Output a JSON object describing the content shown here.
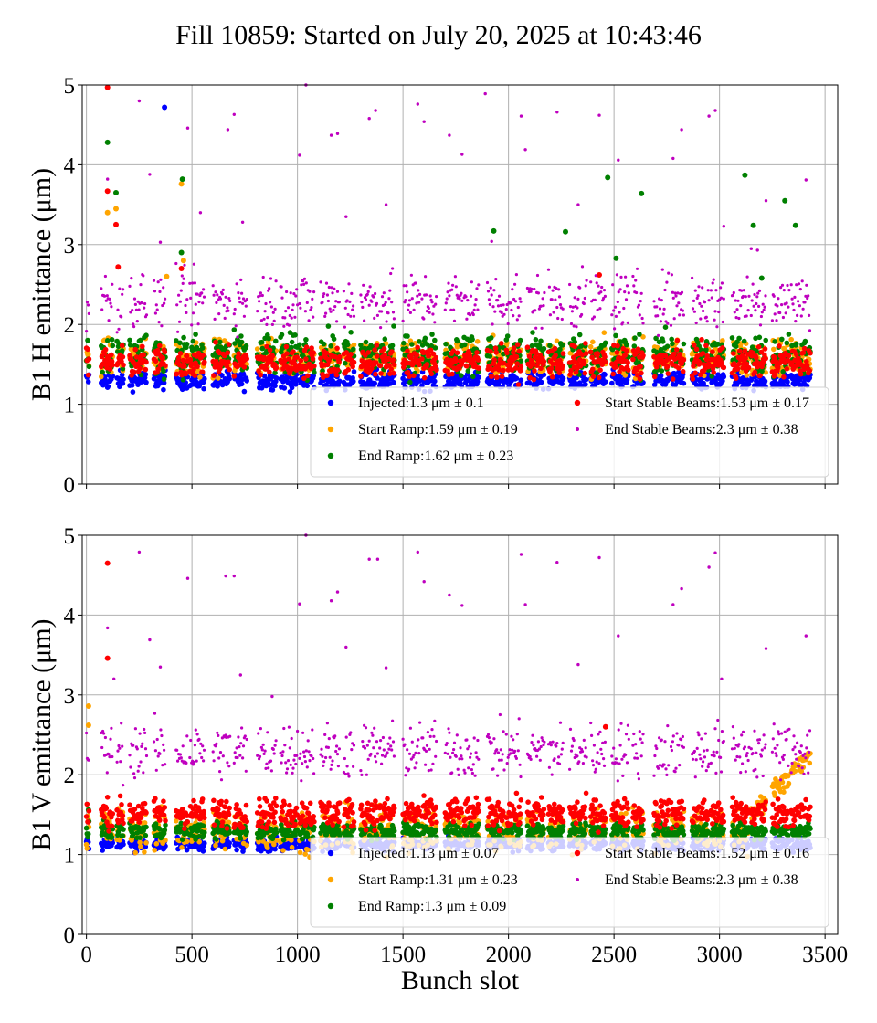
{
  "title": "Fill 10859: Started on July 20, 2025 at 10:43:46",
  "colors": {
    "injected": "#0000ff",
    "start_ramp": "#ffa500",
    "end_ramp": "#008000",
    "start_stable": "#ff0000",
    "end_stable": "#bf00bf"
  },
  "chart_data": [
    {
      "type": "scatter",
      "id": "h",
      "xlabel": "",
      "ylabel": "B1 H emittance (μm)",
      "xlim": [
        -20,
        3560
      ],
      "ylim": [
        0,
        5
      ],
      "yticks": [
        "0",
        "1",
        "2",
        "3",
        "4",
        "5"
      ],
      "xticks": [],
      "grid": true,
      "legend_position": "lower-right",
      "series": [
        {
          "name": "Injected:1.3 μm ± 0.1",
          "key": "injected",
          "mean": 1.3,
          "std": 0.1,
          "outliers": [
            [
              370,
              4.72
            ]
          ]
        },
        {
          "name": "Start Ramp:1.59 μm ± 0.19",
          "key": "start_ramp",
          "mean": 1.59,
          "std": 0.19,
          "outliers": [
            [
              100,
              3.4
            ],
            [
              140,
              3.45
            ],
            [
              450,
              3.76
            ],
            [
              460,
              2.8
            ],
            [
              380,
              2.6
            ]
          ]
        },
        {
          "name": "End Ramp:1.62 μm ± 0.23",
          "key": "end_ramp",
          "mean": 1.62,
          "std": 0.23,
          "outliers": [
            [
              100,
              4.28
            ],
            [
              140,
              3.65
            ],
            [
              455,
              3.82
            ],
            [
              450,
              2.9
            ],
            [
              1930,
              3.17
            ],
            [
              2270,
              3.16
            ],
            [
              2470,
              3.84
            ],
            [
              2510,
              2.83
            ],
            [
              2630,
              3.64
            ],
            [
              3120,
              3.87
            ],
            [
              3160,
              3.24
            ],
            [
              3310,
              3.55
            ],
            [
              3360,
              3.24
            ],
            [
              3200,
              2.58
            ]
          ]
        },
        {
          "name": "Start Stable Beams:1.53 μm ± 0.17",
          "key": "start_stable",
          "mean": 1.53,
          "std": 0.17,
          "outliers": [
            [
              100,
              4.97
            ],
            [
              100,
              3.67
            ],
            [
              140,
              3.25
            ],
            [
              150,
              2.72
            ],
            [
              450,
              2.7
            ],
            [
              2430,
              2.62
            ]
          ]
        },
        {
          "name": "End Stable Beams:2.3 μm ± 0.38",
          "key": "end_stable",
          "mean": 2.3,
          "std": 0.38,
          "outliers": [
            [
              100,
              3.82
            ],
            [
              250,
              4.8
            ],
            [
              300,
              3.88
            ],
            [
              350,
              3.03
            ],
            [
              480,
              4.46
            ],
            [
              540,
              3.4
            ],
            [
              670,
              4.44
            ],
            [
              700,
              4.63
            ],
            [
              740,
              3.28
            ],
            [
              1010,
              4.12
            ],
            [
              1040,
              5.0
            ],
            [
              1160,
              4.37
            ],
            [
              1190,
              4.39
            ],
            [
              1230,
              3.35
            ],
            [
              1340,
              4.58
            ],
            [
              1370,
              4.68
            ],
            [
              1420,
              3.5
            ],
            [
              1570,
              4.76
            ],
            [
              1600,
              4.54
            ],
            [
              1720,
              4.37
            ],
            [
              1780,
              4.13
            ],
            [
              1890,
              4.89
            ],
            [
              1920,
              3.04
            ],
            [
              2060,
              4.61
            ],
            [
              2080,
              4.19
            ],
            [
              2230,
              4.66
            ],
            [
              2330,
              3.5
            ],
            [
              2430,
              4.62
            ],
            [
              2520,
              4.06
            ],
            [
              2780,
              4.08
            ],
            [
              2820,
              4.44
            ],
            [
              2950,
              4.61
            ],
            [
              2980,
              4.68
            ],
            [
              3020,
              3.23
            ],
            [
              3220,
              3.55
            ],
            [
              3410,
              3.81
            ],
            [
              3150,
              2.95
            ],
            [
              3180,
              2.93
            ]
          ]
        }
      ]
    },
    {
      "type": "scatter",
      "id": "v",
      "xlabel": "Bunch slot",
      "ylabel": "B1 V emittance (μm)",
      "xlim": [
        -20,
        3560
      ],
      "ylim": [
        0,
        5
      ],
      "yticks": [
        "0",
        "1",
        "2",
        "3",
        "4",
        "5"
      ],
      "xticks": [
        "0",
        "500",
        "1000",
        "1500",
        "2000",
        "2500",
        "3000",
        "3500"
      ],
      "grid": true,
      "legend_position": "lower-right",
      "series": [
        {
          "name": "Injected:1.13 μm ± 0.07",
          "key": "injected",
          "mean": 1.13,
          "std": 0.07,
          "outliers": []
        },
        {
          "name": "Start Ramp:1.31 μm ± 0.23",
          "key": "start_ramp",
          "mean": 1.31,
          "std": 0.23,
          "outliers": [
            [
              10,
              2.86
            ],
            [
              10,
              2.62
            ]
          ]
        },
        {
          "name": "End Ramp:1.3 μm ± 0.09",
          "key": "end_ramp",
          "mean": 1.3,
          "std": 0.09,
          "outliers": [
            [
              10,
              1.56
            ]
          ]
        },
        {
          "name": "Start Stable Beams:1.52 μm ± 0.16",
          "key": "start_stable",
          "mean": 1.52,
          "std": 0.16,
          "outliers": [
            [
              100,
              4.65
            ],
            [
              100,
              3.46
            ],
            [
              2460,
              2.6
            ]
          ]
        },
        {
          "name": "End Stable Beams:2.3 μm ± 0.38",
          "key": "end_stable",
          "mean": 2.3,
          "std": 0.38,
          "outliers": [
            [
              100,
              3.84
            ],
            [
              130,
              3.2
            ],
            [
              250,
              4.79
            ],
            [
              300,
              3.69
            ],
            [
              350,
              3.35
            ],
            [
              480,
              4.46
            ],
            [
              660,
              4.49
            ],
            [
              700,
              4.49
            ],
            [
              730,
              3.25
            ],
            [
              880,
              2.98
            ],
            [
              1010,
              4.14
            ],
            [
              1040,
              5.0
            ],
            [
              1160,
              4.18
            ],
            [
              1190,
              4.29
            ],
            [
              1230,
              3.6
            ],
            [
              1340,
              4.7
            ],
            [
              1380,
              4.7
            ],
            [
              1420,
              3.34
            ],
            [
              1570,
              4.79
            ],
            [
              1600,
              4.42
            ],
            [
              1720,
              4.25
            ],
            [
              1780,
              4.12
            ],
            [
              2060,
              4.76
            ],
            [
              2080,
              4.13
            ],
            [
              2230,
              4.66
            ],
            [
              2330,
              3.38
            ],
            [
              2430,
              4.72
            ],
            [
              2520,
              3.74
            ],
            [
              2780,
              4.13
            ],
            [
              2820,
              4.33
            ],
            [
              2950,
              4.6
            ],
            [
              2980,
              4.78
            ],
            [
              3010,
              3.2
            ],
            [
              3220,
              3.58
            ],
            [
              3410,
              3.74
            ]
          ]
        }
      ]
    }
  ],
  "fill_pattern": {
    "trains": [
      [
        0,
        12
      ],
      [
        70,
        125
      ],
      [
        145,
        175
      ],
      [
        205,
        285
      ],
      [
        320,
        375
      ],
      [
        425,
        480
      ],
      [
        490,
        560
      ],
      [
        600,
        680
      ],
      [
        700,
        760
      ],
      [
        810,
        900
      ],
      [
        920,
        1000
      ],
      [
        1010,
        1080
      ],
      [
        1110,
        1200
      ],
      [
        1220,
        1270
      ],
      [
        1300,
        1380
      ],
      [
        1390,
        1460
      ],
      [
        1500,
        1580
      ],
      [
        1590,
        1660
      ],
      [
        1700,
        1780
      ],
      [
        1790,
        1860
      ],
      [
        1900,
        1980
      ],
      [
        1990,
        2060
      ],
      [
        2090,
        2170
      ],
      [
        2190,
        2260
      ],
      [
        2290,
        2370
      ],
      [
        2390,
        2460
      ],
      [
        2490,
        2570
      ],
      [
        2590,
        2640
      ],
      [
        2690,
        2760
      ],
      [
        2770,
        2830
      ],
      [
        2870,
        2950
      ],
      [
        2960,
        3020
      ],
      [
        3060,
        3140
      ],
      [
        3150,
        3220
      ],
      [
        3250,
        3330
      ],
      [
        3340,
        3430
      ]
    ]
  }
}
